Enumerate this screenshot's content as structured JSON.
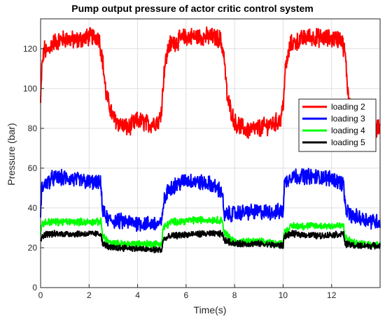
{
  "chart_data": {
    "type": "line",
    "title": "Pump output pressure of actor critic control system",
    "xlabel": "Time(s)",
    "ylabel": "Pressure (bar)",
    "xlim": [
      0,
      14
    ],
    "ylim": [
      0,
      135
    ],
    "xticks": [
      0,
      2,
      4,
      6,
      8,
      10,
      12
    ],
    "yticks": [
      0,
      20,
      40,
      60,
      80,
      100,
      120
    ],
    "xtick_labels": [
      "0",
      "2",
      "4",
      "6",
      "8",
      "10",
      "12"
    ],
    "ytick_labels": [
      "0",
      "20",
      "40",
      "60",
      "80",
      "100",
      "120"
    ],
    "grid": true,
    "legend_position": "right",
    "series": [
      {
        "name": "loading 2",
        "color": "#ff0000",
        "x": [
          0,
          0.05,
          0.15,
          0.25,
          0.5,
          1.0,
          1.5,
          2.0,
          2.4,
          2.55,
          2.7,
          3.0,
          3.3,
          3.6,
          4.0,
          4.5,
          4.9,
          5.0,
          5.1,
          5.3,
          6.0,
          7.0,
          7.4,
          7.55,
          7.7,
          8.0,
          8.5,
          9.0,
          9.5,
          9.9,
          10.0,
          10.1,
          10.3,
          11.0,
          12.0,
          12.4,
          12.55,
          12.7,
          13.0,
          13.5,
          14.0
        ],
        "y": [
          92,
          110,
          120,
          118,
          123,
          125,
          124,
          126,
          126,
          115,
          97,
          85,
          82,
          80,
          84,
          82,
          84,
          92,
          110,
          122,
          126,
          126,
          125,
          118,
          95,
          83,
          79,
          80,
          82,
          84,
          92,
          110,
          122,
          126,
          125,
          125,
          118,
          95,
          82,
          79,
          80
        ],
        "noise": 4
      },
      {
        "name": "loading 3",
        "color": "#0000ff",
        "x": [
          0,
          0.05,
          0.2,
          0.5,
          1.0,
          1.5,
          2.0,
          2.5,
          2.55,
          2.8,
          3.5,
          4.5,
          5.0,
          5.05,
          5.3,
          6.0,
          7.0,
          7.5,
          7.55,
          7.8,
          8.5,
          9.5,
          10.0,
          10.05,
          10.3,
          11.0,
          12.0,
          12.5,
          12.55,
          12.8,
          13.5,
          14.0
        ],
        "y": [
          38,
          50,
          52,
          55,
          55,
          54,
          53,
          52,
          38,
          34,
          33,
          32,
          32,
          42,
          50,
          54,
          52,
          48,
          36,
          37,
          38,
          38,
          38,
          52,
          56,
          56,
          55,
          52,
          40,
          36,
          34,
          33
        ],
        "noise": 3.5
      },
      {
        "name": "loading 4",
        "color": "#00ff00",
        "x": [
          0,
          0.05,
          0.3,
          1.0,
          2.0,
          2.5,
          2.55,
          2.9,
          3.5,
          4.5,
          5.0,
          5.05,
          5.4,
          6.5,
          7.5,
          7.55,
          8.0,
          9.0,
          10.0,
          10.05,
          10.4,
          11.5,
          12.5,
          12.55,
          13.0,
          14.0
        ],
        "y": [
          26,
          32,
          33,
          33,
          33,
          33,
          26,
          22,
          22,
          22,
          22,
          30,
          33,
          34,
          34,
          28,
          23,
          23,
          22,
          28,
          31,
          31,
          31,
          25,
          22,
          22
        ],
        "noise": 1.6
      },
      {
        "name": "loading 5",
        "color": "#000000",
        "x": [
          0,
          0.05,
          0.3,
          1.0,
          2.0,
          2.5,
          2.55,
          2.9,
          3.5,
          4.5,
          5.0,
          5.05,
          5.4,
          6.5,
          7.5,
          7.55,
          8.0,
          9.0,
          10.0,
          10.05,
          10.4,
          11.5,
          12.5,
          12.55,
          13.0,
          14.0
        ],
        "y": [
          22,
          26,
          27,
          27,
          27,
          27,
          22,
          20,
          20,
          19,
          19,
          24,
          26,
          27,
          27,
          24,
          22,
          22,
          21,
          26,
          27,
          26,
          27,
          22,
          21,
          21
        ],
        "noise": 1.4
      }
    ]
  }
}
